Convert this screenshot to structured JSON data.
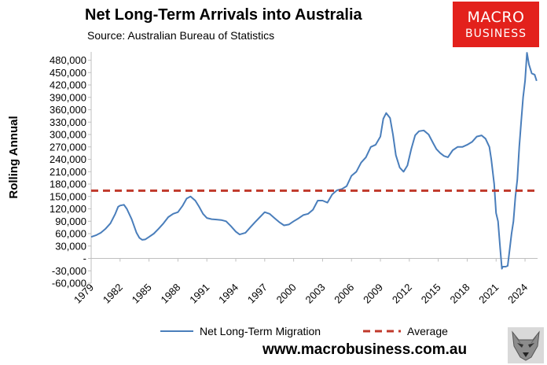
{
  "header": {
    "title": "Net Long-Term Arrivals into Australia",
    "subtitle": "Source: Australian Bureau of Statistics"
  },
  "logo": {
    "line1": "MACRO",
    "line2": "BUSINESS"
  },
  "footer": {
    "url": "www.macrobusiness.com.au"
  },
  "icons": {
    "logo_mark": "wolf-icon"
  },
  "chart_data": {
    "type": "line",
    "ylabel": "Rolling Annual",
    "xlabel": "",
    "ylim": [
      -60000,
      500000
    ],
    "xlim": [
      1979.0,
      2025.3
    ],
    "yticks": [
      -60000,
      -30000,
      0,
      30000,
      60000,
      90000,
      120000,
      150000,
      180000,
      210000,
      240000,
      270000,
      300000,
      330000,
      360000,
      390000,
      420000,
      450000,
      480000
    ],
    "ytick_labels": [
      "-60,000",
      "-30,000",
      "-",
      "30,000",
      "60,000",
      "90,000",
      "120,000",
      "150,000",
      "180,000",
      "210,000",
      "240,000",
      "270,000",
      "300,000",
      "330,000",
      "360,000",
      "390,000",
      "420,000",
      "450,000",
      "480,000"
    ],
    "xticks": [
      1979,
      1982,
      1985,
      1988,
      1991,
      1994,
      1997,
      2000,
      2003,
      2006,
      2009,
      2012,
      2015,
      2018,
      2021,
      2024
    ],
    "xtick_labels": [
      "1979",
      "1982",
      "1985",
      "1988",
      "1991",
      "1994",
      "1997",
      "2000",
      "2003",
      "2006",
      "2009",
      "2012",
      "2015",
      "2018",
      "2021",
      "2024"
    ],
    "grid": false,
    "legend": "bottom",
    "colors": {
      "migration": "#4a7ebb",
      "average": "#c0392b"
    },
    "series": [
      {
        "name": "Net Long-Term Migration",
        "style": "solid",
        "x": [
          1979.0,
          1979.5,
          1980.0,
          1980.5,
          1981.0,
          1981.5,
          1981.8,
          1982.0,
          1982.4,
          1982.7,
          1983.2,
          1983.7,
          1984.0,
          1984.3,
          1984.6,
          1985.0,
          1985.5,
          1986.0,
          1986.5,
          1987.0,
          1987.5,
          1988.0,
          1988.5,
          1988.9,
          1989.3,
          1989.8,
          1990.2,
          1990.6,
          1991.0,
          1991.5,
          1992.0,
          1992.5,
          1993.0,
          1993.5,
          1994.0,
          1994.4,
          1995.0,
          1995.5,
          1996.0,
          1996.5,
          1997.0,
          1997.5,
          1998.0,
          1998.5,
          1999.0,
          1999.5,
          2000.0,
          2000.5,
          2001.0,
          2001.5,
          2002.0,
          2002.5,
          2003.0,
          2003.5,
          2004.0,
          2004.5,
          2005.0,
          2005.5,
          2006.0,
          2006.5,
          2007.0,
          2007.5,
          2008.0,
          2008.5,
          2009.0,
          2009.3,
          2009.6,
          2010.0,
          2010.3,
          2010.6,
          2011.0,
          2011.4,
          2011.8,
          2012.2,
          2012.6,
          2013.0,
          2013.5,
          2014.0,
          2014.5,
          2014.8,
          2015.2,
          2015.6,
          2016.0,
          2016.5,
          2017.0,
          2017.5,
          2018.0,
          2018.5,
          2019.0,
          2019.5,
          2019.9,
          2020.3,
          2020.5,
          2020.8,
          2021.0,
          2021.2,
          2021.4,
          2021.6,
          2021.7,
          2022.0,
          2022.2,
          2022.4,
          2022.6,
          2022.8,
          2023.0,
          2023.2,
          2023.4,
          2023.6,
          2023.8,
          2024.0,
          2024.2,
          2024.4,
          2024.7,
          2025.0,
          2025.2
        ],
        "values": [
          52000,
          56000,
          62000,
          72000,
          85000,
          108000,
          125000,
          128000,
          130000,
          120000,
          95000,
          62000,
          50000,
          45000,
          46000,
          52000,
          60000,
          72000,
          85000,
          100000,
          108000,
          112000,
          128000,
          145000,
          150000,
          140000,
          125000,
          108000,
          98000,
          95000,
          94000,
          93000,
          90000,
          78000,
          65000,
          58000,
          62000,
          75000,
          88000,
          100000,
          112000,
          108000,
          98000,
          88000,
          80000,
          82000,
          90000,
          97000,
          105000,
          108000,
          118000,
          140000,
          140000,
          135000,
          155000,
          165000,
          168000,
          175000,
          200000,
          210000,
          232000,
          245000,
          270000,
          275000,
          295000,
          338000,
          352000,
          340000,
          300000,
          250000,
          220000,
          210000,
          225000,
          265000,
          298000,
          308000,
          310000,
          300000,
          278000,
          265000,
          255000,
          248000,
          245000,
          262000,
          270000,
          270000,
          275000,
          282000,
          295000,
          298000,
          290000,
          270000,
          240000,
          180000,
          110000,
          90000,
          30000,
          -25000,
          -20000,
          -20000,
          -18000,
          20000,
          60000,
          90000,
          150000,
          190000,
          270000,
          330000,
          390000,
          430000,
          498000,
          470000,
          448000,
          445000,
          430000
        ]
      },
      {
        "name": "Average",
        "style": "dashed",
        "x": [
          1979.0,
          2025.3
        ],
        "values": [
          164000,
          164000
        ]
      }
    ]
  }
}
